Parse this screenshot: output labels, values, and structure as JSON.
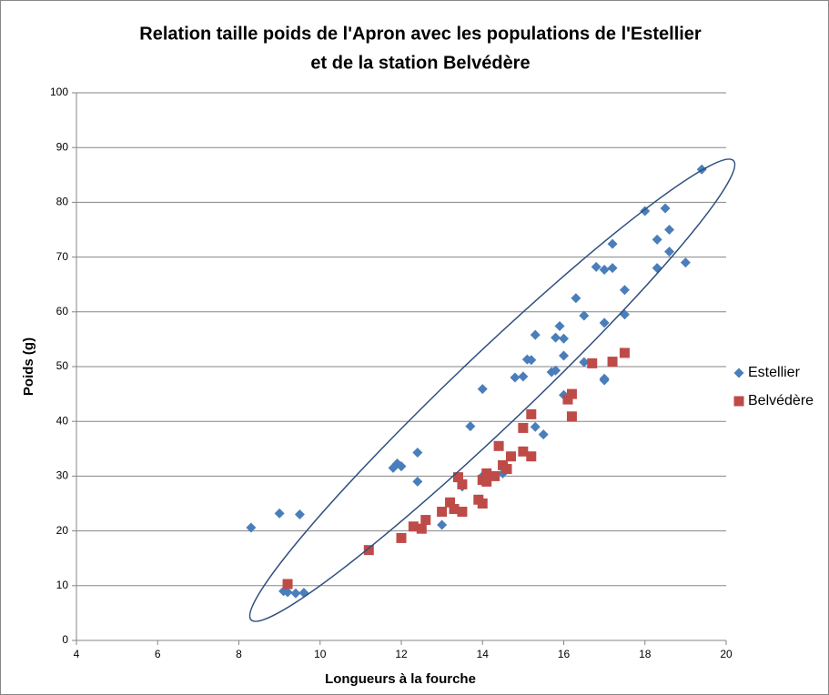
{
  "chart_data": {
    "type": "scatter",
    "title": [
      "Relation taille poids de l'Apron avec les populations de l'Estellier",
      "et de la station Belvédère"
    ],
    "x_label": "Longueurs à la fourche",
    "y_label": "Poids (g)",
    "xlim": [
      4,
      20
    ],
    "xticks": [
      4,
      6,
      8,
      10,
      12,
      14,
      16,
      18,
      20
    ],
    "ylim": [
      0,
      100
    ],
    "yticks": [
      0,
      10,
      20,
      30,
      40,
      50,
      60,
      70,
      80,
      90,
      100
    ],
    "grid": true,
    "legend": "right",
    "series": [
      {
        "name": "Estellier",
        "color": "#4a7ebb",
        "marker": "diamond",
        "x": [
          8.3,
          9.0,
          9.5,
          9.1,
          9.2,
          9.4,
          9.6,
          11.8,
          11.9,
          12.0,
          12.4,
          12.4,
          13.0,
          13.5,
          13.7,
          14.0,
          14.0,
          14.5,
          14.8,
          15.0,
          15.1,
          15.2,
          15.3,
          15.3,
          15.5,
          15.7,
          15.8,
          15.8,
          15.9,
          16.0,
          16.0,
          16.0,
          16.3,
          16.5,
          16.5,
          16.8,
          17.0,
          17.0,
          17.0,
          17.0,
          17.2,
          17.2,
          17.5,
          17.5,
          18.0,
          18.3,
          18.3,
          18.5,
          18.6,
          18.6,
          19.0,
          19.4
        ],
        "values": [
          20.6,
          23.2,
          23.0,
          9.0,
          8.8,
          8.6,
          8.7,
          31.5,
          32.3,
          31.8,
          34.3,
          29.0,
          21.1,
          28.1,
          39.1,
          45.9,
          30.0,
          30.5,
          48.0,
          48.2,
          51.3,
          51.2,
          55.8,
          39.0,
          37.6,
          49.0,
          49.3,
          55.3,
          57.4,
          55.1,
          52.0,
          44.8,
          62.5,
          59.3,
          50.8,
          68.2,
          67.7,
          58.0,
          47.8,
          47.5,
          72.4,
          68.0,
          64.0,
          59.5,
          78.4,
          73.2,
          68.0,
          78.9,
          75.0,
          71.0,
          69.0,
          86.0
        ]
      },
      {
        "name": "Belvédère",
        "color": "#be4b48",
        "marker": "square",
        "x": [
          9.2,
          11.2,
          12.0,
          12.3,
          12.5,
          12.6,
          13.0,
          13.2,
          13.3,
          13.4,
          13.5,
          13.5,
          13.9,
          14.0,
          14.0,
          14.1,
          14.1,
          14.3,
          14.4,
          14.5,
          14.6,
          14.7,
          15.0,
          15.0,
          15.2,
          15.2,
          16.1,
          16.2,
          16.2,
          16.7,
          17.2,
          17.5
        ],
        "values": [
          10.3,
          16.5,
          18.7,
          20.8,
          20.4,
          22.0,
          23.5,
          25.2,
          24.0,
          29.8,
          28.5,
          23.5,
          25.7,
          29.3,
          25.0,
          30.5,
          29.0,
          30.0,
          35.5,
          32.0,
          31.3,
          33.6,
          38.8,
          34.5,
          41.3,
          33.6,
          44.0,
          45.0,
          40.9,
          50.6,
          50.9,
          52.5
        ]
      }
    ]
  }
}
